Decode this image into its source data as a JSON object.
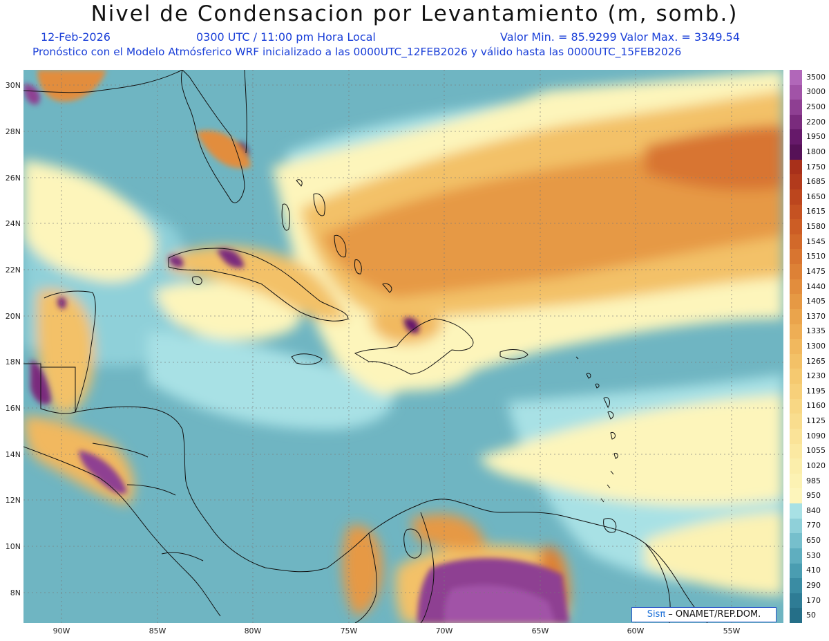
{
  "title": "Nivel de Condensacion por Levantamiento (m, somb.)",
  "date": "12-Feb-2026",
  "time": "0300 UTC / 11:00 pm Hora Local",
  "minmax": "Valor Min. = 85.9299   Valor Max. = 3349.54",
  "forecast": "Pronóstico con el Modelo Atmósferico WRF inicializado a las 0000UTC_12FEB2026 y válido hasta las  0000UTC_15FEB2026",
  "lat_ticks": [
    "30N",
    "28N",
    "26N",
    "24N",
    "22N",
    "20N",
    "18N",
    "16N",
    "14N",
    "12N",
    "10N",
    "8N"
  ],
  "lon_ticks": [
    "90W",
    "85W",
    "80W",
    "75W",
    "70W",
    "65W",
    "60W",
    "55W"
  ],
  "colorbar": {
    "levels": [
      "3500",
      "3000",
      "2500",
      "2200",
      "1950",
      "1800",
      "1750",
      "1685",
      "1650",
      "1615",
      "1580",
      "1545",
      "1510",
      "1475",
      "1440",
      "1405",
      "1370",
      "1335",
      "1300",
      "1265",
      "1230",
      "1195",
      "1160",
      "1125",
      "1090",
      "1055",
      "1020",
      "985",
      "950",
      "840",
      "770",
      "650",
      "530",
      "410",
      "290",
      "170",
      "50"
    ],
    "colors": [
      "#b167b9",
      "#a153a7",
      "#8e3f92",
      "#7a2b7d",
      "#66196a",
      "#561157",
      "#a8301a",
      "#b23a1c",
      "#bc461e",
      "#c55222",
      "#cc5d25",
      "#d2692a",
      "#d87530",
      "#dd8136",
      "#e28d3d",
      "#e69944",
      "#eaa44c",
      "#eeae55",
      "#f1b85e",
      "#f3c167",
      "#f5c970",
      "#f7d07a",
      "#f8d784",
      "#f9dd8e",
      "#fae398",
      "#fbe9a2",
      "#fbeeab",
      "#fcf2b3",
      "#fdf5bb",
      "#a8e1e5",
      "#8fd0d9",
      "#76bfcc",
      "#5faebf",
      "#4a9db1",
      "#3a8ca3",
      "#2e7c95",
      "#256f88"
    ],
    "credit_sis": "Sisπ",
    "credit_rest": " – ONAMET/REP.DOM."
  }
}
